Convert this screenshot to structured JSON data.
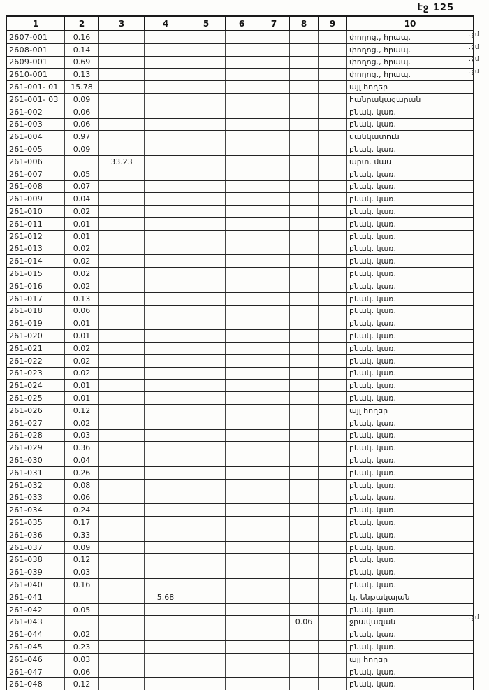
{
  "page": {
    "header_label": "էջ 125"
  },
  "table": {
    "columns": [
      "1",
      "2",
      "3",
      "4",
      "5",
      "6",
      "7",
      "8",
      "9",
      "10"
    ],
    "rows": [
      {
        "cells": [
          "2607-001",
          "0.16",
          "",
          "",
          "",
          "",
          "",
          "",
          "",
          "փողոց., հրապ."
        ],
        "note": ".ջմ"
      },
      {
        "cells": [
          "2608-001",
          "0.14",
          "",
          "",
          "",
          "",
          "",
          "",
          "",
          "փողոց., հրապ."
        ],
        "note": ".ջմ"
      },
      {
        "cells": [
          "2609-001",
          "0.69",
          "",
          "",
          "",
          "",
          "",
          "",
          "",
          "փողոց., հրապ."
        ],
        "note": ".ջմ"
      },
      {
        "cells": [
          "2610-001",
          "0.13",
          "",
          "",
          "",
          "",
          "",
          "",
          "",
          "փողոց., հրապ."
        ],
        "note": ".ջմ"
      },
      {
        "cells": [
          "261-001- 01",
          "15.78",
          "",
          "",
          "",
          "",
          "",
          "",
          "",
          "այլ հողեր"
        ],
        "note": ""
      },
      {
        "cells": [
          "261-001- 03",
          "0.09",
          "",
          "",
          "",
          "",
          "",
          "",
          "",
          "հանրակացարան"
        ],
        "note": ""
      },
      {
        "cells": [
          "261-002",
          "0.06",
          "",
          "",
          "",
          "",
          "",
          "",
          "",
          "բնակ. կառ."
        ],
        "note": ""
      },
      {
        "cells": [
          "261-003",
          "0.06",
          "",
          "",
          "",
          "",
          "",
          "",
          "",
          "բնակ. կառ."
        ],
        "note": ""
      },
      {
        "cells": [
          "261-004",
          "0.97",
          "",
          "",
          "",
          "",
          "",
          "",
          "",
          "մանկատուն"
        ],
        "note": ""
      },
      {
        "cells": [
          "261-005",
          "0.09",
          "",
          "",
          "",
          "",
          "",
          "",
          "",
          "բնակ. կառ."
        ],
        "note": ""
      },
      {
        "cells": [
          "261-006",
          "",
          "33.23",
          "",
          "",
          "",
          "",
          "",
          "",
          "արտ. մաս"
        ],
        "note": ""
      },
      {
        "cells": [
          "261-007",
          "0.05",
          "",
          "",
          "",
          "",
          "",
          "",
          "",
          "բնակ. կառ."
        ],
        "note": ""
      },
      {
        "cells": [
          "261-008",
          "0.07",
          "",
          "",
          "",
          "",
          "",
          "",
          "",
          "բնակ. կառ."
        ],
        "note": ""
      },
      {
        "cells": [
          "261-009",
          "0.04",
          "",
          "",
          "",
          "",
          "",
          "",
          "",
          "բնակ. կառ."
        ],
        "note": ""
      },
      {
        "cells": [
          "261-010",
          "0.02",
          "",
          "",
          "",
          "",
          "",
          "",
          "",
          "բնակ. կառ."
        ],
        "note": ""
      },
      {
        "cells": [
          "261-011",
          "0.01",
          "",
          "",
          "",
          "",
          "",
          "",
          "",
          "բնակ. կառ."
        ],
        "note": ""
      },
      {
        "cells": [
          "261-012",
          "0.01",
          "",
          "",
          "",
          "",
          "",
          "",
          "",
          "բնակ. կառ."
        ],
        "note": ""
      },
      {
        "cells": [
          "261-013",
          "0.02",
          "",
          "",
          "",
          "",
          "",
          "",
          "",
          "բնակ. կառ."
        ],
        "note": ""
      },
      {
        "cells": [
          "261-014",
          "0.02",
          "",
          "",
          "",
          "",
          "",
          "",
          "",
          "բնակ. կառ."
        ],
        "note": ""
      },
      {
        "cells": [
          "261-015",
          "0.02",
          "",
          "",
          "",
          "",
          "",
          "",
          "",
          "բնակ. կառ."
        ],
        "note": ""
      },
      {
        "cells": [
          "261-016",
          "0.02",
          "",
          "",
          "",
          "",
          "",
          "",
          "",
          "բնակ. կառ."
        ],
        "note": ""
      },
      {
        "cells": [
          "261-017",
          "0.13",
          "",
          "",
          "",
          "",
          "",
          "",
          "",
          "բնակ. կառ."
        ],
        "note": ""
      },
      {
        "cells": [
          "261-018",
          "0.06",
          "",
          "",
          "",
          "",
          "",
          "",
          "",
          "բնակ. կառ."
        ],
        "note": ""
      },
      {
        "cells": [
          "261-019",
          "0.01",
          "",
          "",
          "",
          "",
          "",
          "",
          "",
          "բնակ. կառ."
        ],
        "note": ""
      },
      {
        "cells": [
          "261-020",
          "0.01",
          "",
          "",
          "",
          "",
          "",
          "",
          "",
          "բնակ. կառ."
        ],
        "note": ""
      },
      {
        "cells": [
          "261-021",
          "0.02",
          "",
          "",
          "",
          "",
          "",
          "",
          "",
          "բնակ. կառ."
        ],
        "note": ""
      },
      {
        "cells": [
          "261-022",
          "0.02",
          "",
          "",
          "",
          "",
          "",
          "",
          "",
          "բնակ. կառ."
        ],
        "note": ""
      },
      {
        "cells": [
          "261-023",
          "0.02",
          "",
          "",
          "",
          "",
          "",
          "",
          "",
          "բնակ. կառ."
        ],
        "note": ""
      },
      {
        "cells": [
          "261-024",
          "0.01",
          "",
          "",
          "",
          "",
          "",
          "",
          "",
          "բնակ. կառ."
        ],
        "note": ""
      },
      {
        "cells": [
          "261-025",
          "0.01",
          "",
          "",
          "",
          "",
          "",
          "",
          "",
          "բնակ. կառ."
        ],
        "note": ""
      },
      {
        "cells": [
          "261-026",
          "0.12",
          "",
          "",
          "",
          "",
          "",
          "",
          "",
          "այլ հողեր"
        ],
        "note": ""
      },
      {
        "cells": [
          "261-027",
          "0.02",
          "",
          "",
          "",
          "",
          "",
          "",
          "",
          "բնակ. կառ."
        ],
        "note": ""
      },
      {
        "cells": [
          "261-028",
          "0.03",
          "",
          "",
          "",
          "",
          "",
          "",
          "",
          "բնակ. կառ."
        ],
        "note": ""
      },
      {
        "cells": [
          "261-029",
          "0.36",
          "",
          "",
          "",
          "",
          "",
          "",
          "",
          "բնակ. կառ."
        ],
        "note": ""
      },
      {
        "cells": [
          "261-030",
          "0.04",
          "",
          "",
          "",
          "",
          "",
          "",
          "",
          "բնակ. կառ."
        ],
        "note": ""
      },
      {
        "cells": [
          "261-031",
          "0.26",
          "",
          "",
          "",
          "",
          "",
          "",
          "",
          "բնակ. կառ."
        ],
        "note": ""
      },
      {
        "cells": [
          "261-032",
          "0.08",
          "",
          "",
          "",
          "",
          "",
          "",
          "",
          "բնակ. կառ."
        ],
        "note": ""
      },
      {
        "cells": [
          "261-033",
          "0.06",
          "",
          "",
          "",
          "",
          "",
          "",
          "",
          "բնակ. կառ."
        ],
        "note": ""
      },
      {
        "cells": [
          "261-034",
          "0.24",
          "",
          "",
          "",
          "",
          "",
          "",
          "",
          "բնակ. կառ."
        ],
        "note": ""
      },
      {
        "cells": [
          "261-035",
          "0.17",
          "",
          "",
          "",
          "",
          "",
          "",
          "",
          "բնակ. կառ."
        ],
        "note": ""
      },
      {
        "cells": [
          "261-036",
          "0.33",
          "",
          "",
          "",
          "",
          "",
          "",
          "",
          "բնակ. կառ."
        ],
        "note": ""
      },
      {
        "cells": [
          "261-037",
          "0.09",
          "",
          "",
          "",
          "",
          "",
          "",
          "",
          "բնակ. կառ."
        ],
        "note": ""
      },
      {
        "cells": [
          "261-038",
          "0.12",
          "",
          "",
          "",
          "",
          "",
          "",
          "",
          "բնակ. կառ."
        ],
        "note": ""
      },
      {
        "cells": [
          "261-039",
          "0.03",
          "",
          "",
          "",
          "",
          "",
          "",
          "",
          "բնակ. կառ."
        ],
        "note": ""
      },
      {
        "cells": [
          "261-040",
          "0.16",
          "",
          "",
          "",
          "",
          "",
          "",
          "",
          "բնակ. կառ."
        ],
        "note": ""
      },
      {
        "cells": [
          "261-041",
          "",
          "",
          "5.68",
          "",
          "",
          "",
          "",
          "",
          "էլ. ենթակայան"
        ],
        "note": ""
      },
      {
        "cells": [
          "261-042",
          "0.05",
          "",
          "",
          "",
          "",
          "",
          "",
          "",
          "բնակ. կառ."
        ],
        "note": ""
      },
      {
        "cells": [
          "261-043",
          "",
          "",
          "",
          "",
          "",
          "",
          "0.06",
          "",
          "ջրավազան"
        ],
        "note": ".ջմ"
      },
      {
        "cells": [
          "261-044",
          "0.02",
          "",
          "",
          "",
          "",
          "",
          "",
          "",
          "բնակ. կառ."
        ],
        "note": ""
      },
      {
        "cells": [
          "261-045",
          "0.23",
          "",
          "",
          "",
          "",
          "",
          "",
          "",
          "բնակ. կառ."
        ],
        "note": ""
      },
      {
        "cells": [
          "261-046",
          "0.03",
          "",
          "",
          "",
          "",
          "",
          "",
          "",
          "այլ հողեր"
        ],
        "note": ""
      },
      {
        "cells": [
          "261-047",
          "0.06",
          "",
          "",
          "",
          "",
          "",
          "",
          "",
          "բնակ. կառ."
        ],
        "note": ""
      },
      {
        "cells": [
          "261-048",
          "0.12",
          "",
          "",
          "",
          "",
          "",
          "",
          "",
          "բնակ. կառ."
        ],
        "note": ""
      }
    ]
  }
}
